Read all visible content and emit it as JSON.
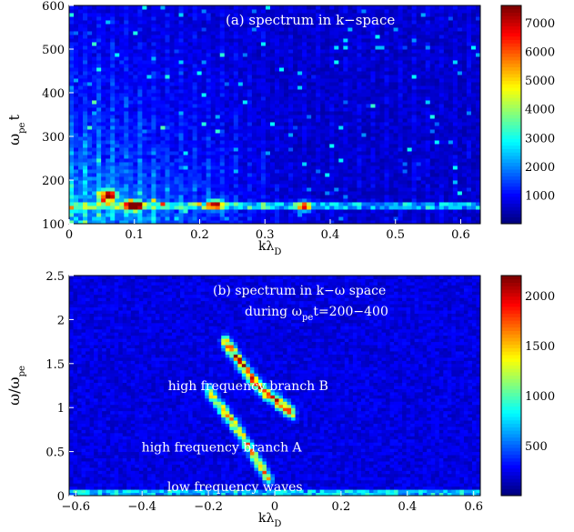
{
  "chart_data": [
    {
      "type": "heatmap",
      "panel_label": "(a) spectrum in k−space",
      "xlabel": "kλ",
      "xlabel_sub": "D",
      "ylabel": "ω",
      "ylabel_sub": "pe",
      "ylabel_suffix": "t",
      "xlim": [
        0,
        0.63
      ],
      "ylim": [
        100,
        600
      ],
      "x_ticks": [
        "0",
        "0.1",
        "0.2",
        "0.3",
        "0.4",
        "0.5",
        "0.6"
      ],
      "x_tick_values": [
        0,
        0.1,
        0.2,
        0.3,
        0.4,
        0.5,
        0.6
      ],
      "y_ticks": [
        "100",
        "200",
        "300",
        "400",
        "500",
        "600"
      ],
      "y_tick_values": [
        100,
        200,
        300,
        400,
        500,
        600
      ],
      "colorbar_ticks": [
        "1000",
        "2000",
        "3000",
        "4000",
        "5000",
        "6000",
        "7000"
      ],
      "colorbar_tick_values": [
        1000,
        2000,
        3000,
        4000,
        5000,
        6000,
        7000
      ],
      "colorbar_range": [
        0,
        7600
      ],
      "colormap": "jet",
      "features": [
        {
          "kind": "band",
          "x_range": [
            0,
            0.63
          ],
          "y_range": [
            130,
            150
          ],
          "level": 2500
        },
        {
          "kind": "hotspot",
          "x": 0.06,
          "y": 165,
          "level": 7200
        },
        {
          "kind": "hotspot",
          "x": 0.1,
          "y": 142,
          "level": 6500
        },
        {
          "kind": "hotspot",
          "x": 0.225,
          "y": 145,
          "level": 4500
        },
        {
          "kind": "hotspot",
          "x": 0.36,
          "y": 140,
          "level": 4000
        }
      ]
    },
    {
      "type": "heatmap",
      "panel_label_line1": "(b) spectrum in k−ω space",
      "panel_label_line2_prefix": "during ω",
      "panel_label_line2_sub": "pe",
      "panel_label_line2_suffix": "t=200−400",
      "xlabel": "kλ",
      "xlabel_sub": "D",
      "ylabel": "ω/ω",
      "ylabel_sub": "pe",
      "xlim": [
        -0.62,
        0.62
      ],
      "ylim": [
        0,
        2.5
      ],
      "x_ticks": [
        "−0.6",
        "−0.4",
        "−0.2",
        "0",
        "0.2",
        "0.4",
        "0.6"
      ],
      "x_tick_values": [
        -0.6,
        -0.4,
        -0.2,
        0,
        0.2,
        0.4,
        0.6
      ],
      "y_ticks": [
        "0",
        "0.5",
        "1",
        "1.5",
        "2",
        "2.5"
      ],
      "y_tick_values": [
        0,
        0.5,
        1,
        1.5,
        2,
        2.5
      ],
      "colorbar_ticks": [
        "500",
        "1000",
        "1500",
        "2000"
      ],
      "colorbar_tick_values": [
        500,
        1000,
        1500,
        2000
      ],
      "colorbar_range": [
        0,
        2200
      ],
      "colormap": "jet",
      "annotations": [
        {
          "text": "high frequency branch B",
          "x": -0.08,
          "y": 1.2
        },
        {
          "text": "high frequency branch A",
          "x": -0.16,
          "y": 0.5
        },
        {
          "text": "low frequency waves",
          "x": -0.12,
          "y": 0.05
        }
      ],
      "branches": [
        {
          "name": "high frequency branch B",
          "points": [
            [
              -0.15,
              1.75
            ],
            [
              -0.1,
              1.5
            ],
            [
              -0.06,
              1.3
            ],
            [
              -0.02,
              1.15
            ],
            [
              0.05,
              0.95
            ]
          ],
          "peak": 2100
        },
        {
          "name": "high frequency branch A",
          "points": [
            [
              -0.2,
              1.2
            ],
            [
              -0.15,
              0.95
            ],
            [
              -0.1,
              0.7
            ],
            [
              -0.06,
              0.45
            ],
            [
              -0.02,
              0.2
            ]
          ],
          "peak": 1600
        }
      ]
    }
  ]
}
